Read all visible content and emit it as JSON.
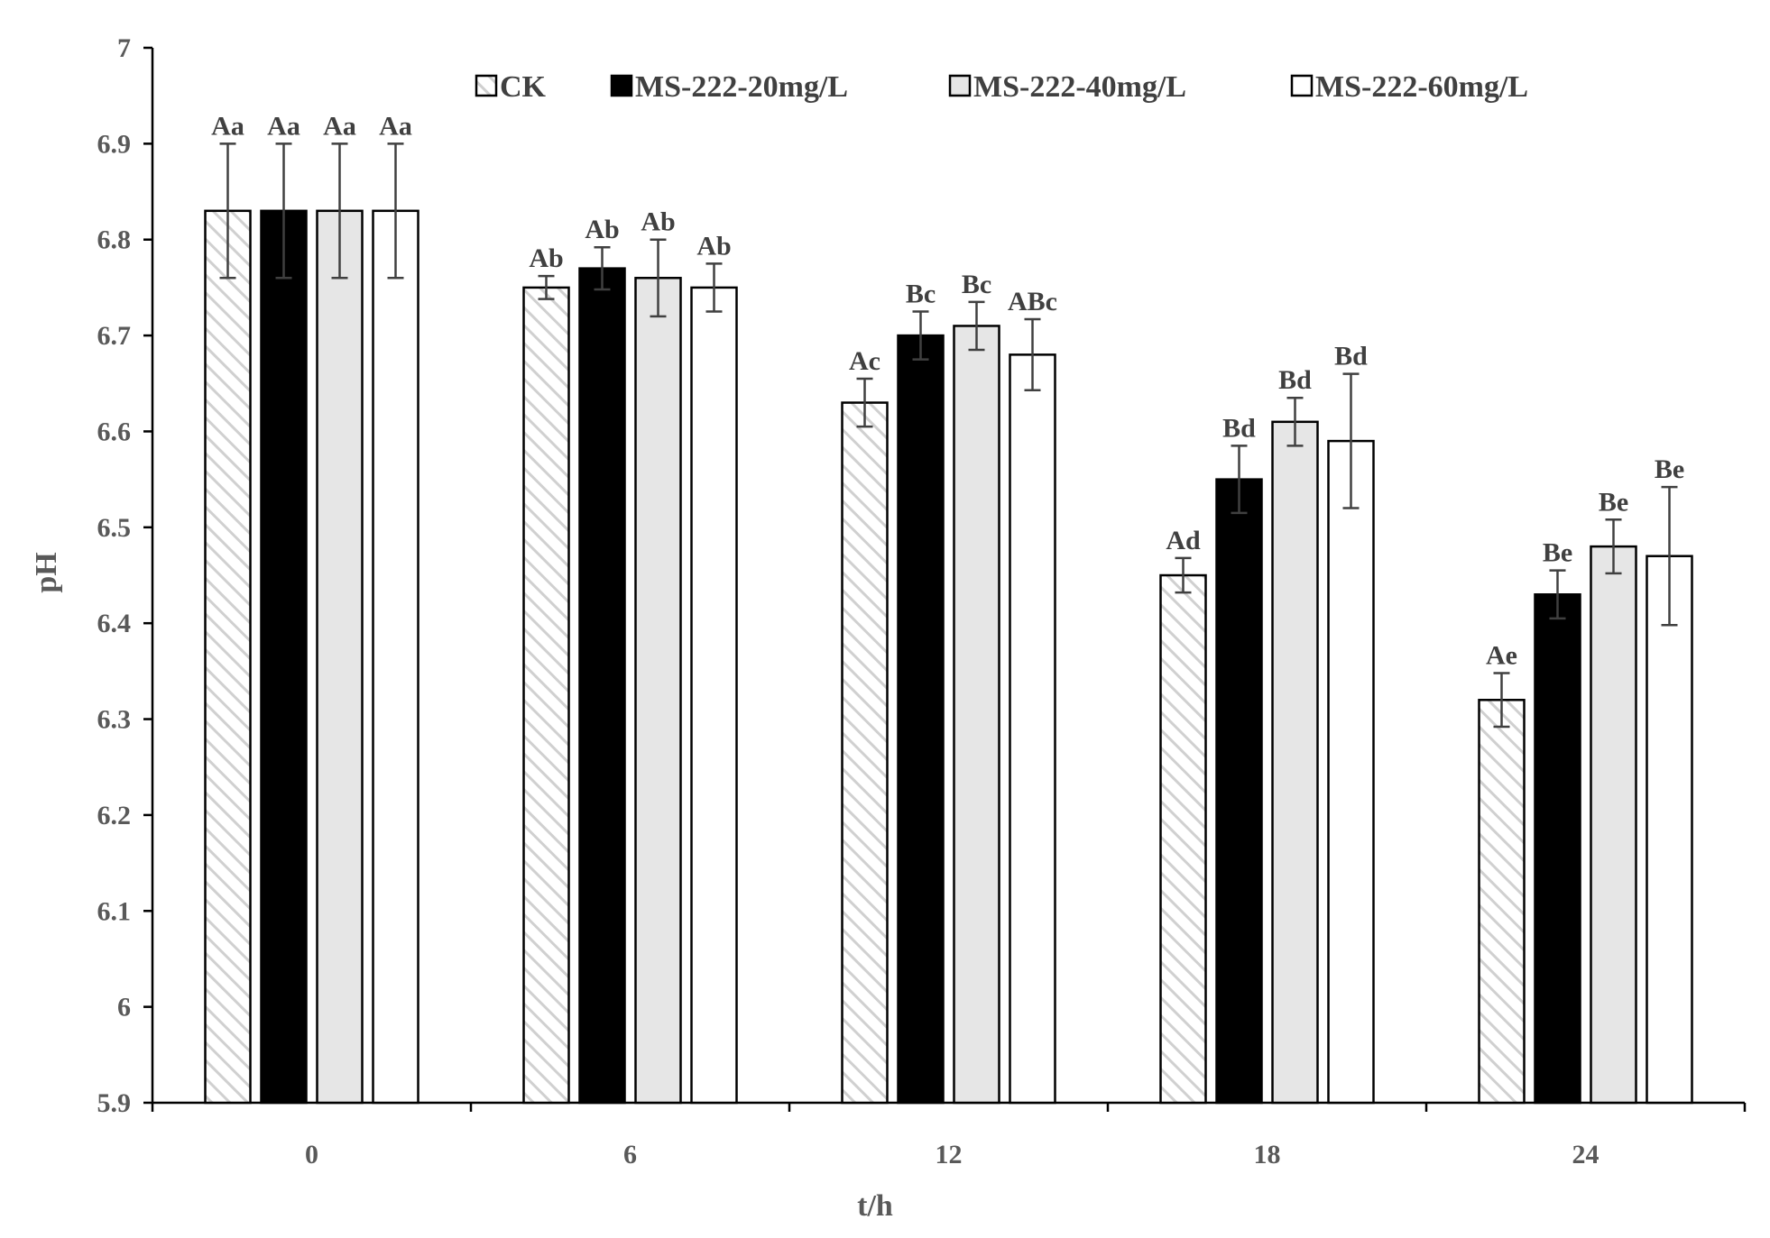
{
  "chart_data": {
    "type": "bar",
    "xlabel": "t/h",
    "ylabel": "pH",
    "ylim": [
      5.9,
      7.0
    ],
    "yticks": [
      "5.9",
      "6",
      "6.1",
      "6.2",
      "6.3",
      "6.4",
      "6.5",
      "6.6",
      "6.7",
      "6.8",
      "6.9",
      "7"
    ],
    "categories": [
      "0",
      "6",
      "12",
      "18",
      "24"
    ],
    "grid": false,
    "legend_position": "top",
    "series": [
      {
        "name": "CK",
        "style": "hatched",
        "color": "#d9d9d9",
        "values": [
          6.83,
          6.75,
          6.63,
          6.45,
          6.32
        ],
        "errors": [
          0.07,
          0.012,
          0.025,
          0.018,
          0.028
        ],
        "labels": [
          "Aa",
          "Ab",
          "Ac",
          "Ad",
          "Ae"
        ]
      },
      {
        "name": "MS-222-20mg/L",
        "style": "solid",
        "color": "#000000",
        "values": [
          6.83,
          6.77,
          6.7,
          6.55,
          6.43
        ],
        "errors": [
          0.07,
          0.022,
          0.025,
          0.035,
          0.025
        ],
        "labels": [
          "Aa",
          "Ab",
          "Bc",
          "Bd",
          "Be"
        ]
      },
      {
        "name": "MS-222-40mg/L",
        "style": "solid",
        "color": "#e6e6e6",
        "values": [
          6.83,
          6.76,
          6.71,
          6.61,
          6.48
        ],
        "errors": [
          0.07,
          0.04,
          0.025,
          0.025,
          0.028
        ],
        "labels": [
          "Aa",
          "Ab",
          "Bc",
          "Bd",
          "Be"
        ]
      },
      {
        "name": "MS-222-60mg/L",
        "style": "solid",
        "color": "#ffffff",
        "values": [
          6.83,
          6.75,
          6.68,
          6.59,
          6.47
        ],
        "errors": [
          0.07,
          0.025,
          0.037,
          0.07,
          0.072
        ],
        "labels": [
          "Aa",
          "Ab",
          "ABc",
          "Bd",
          "Be"
        ]
      }
    ]
  }
}
